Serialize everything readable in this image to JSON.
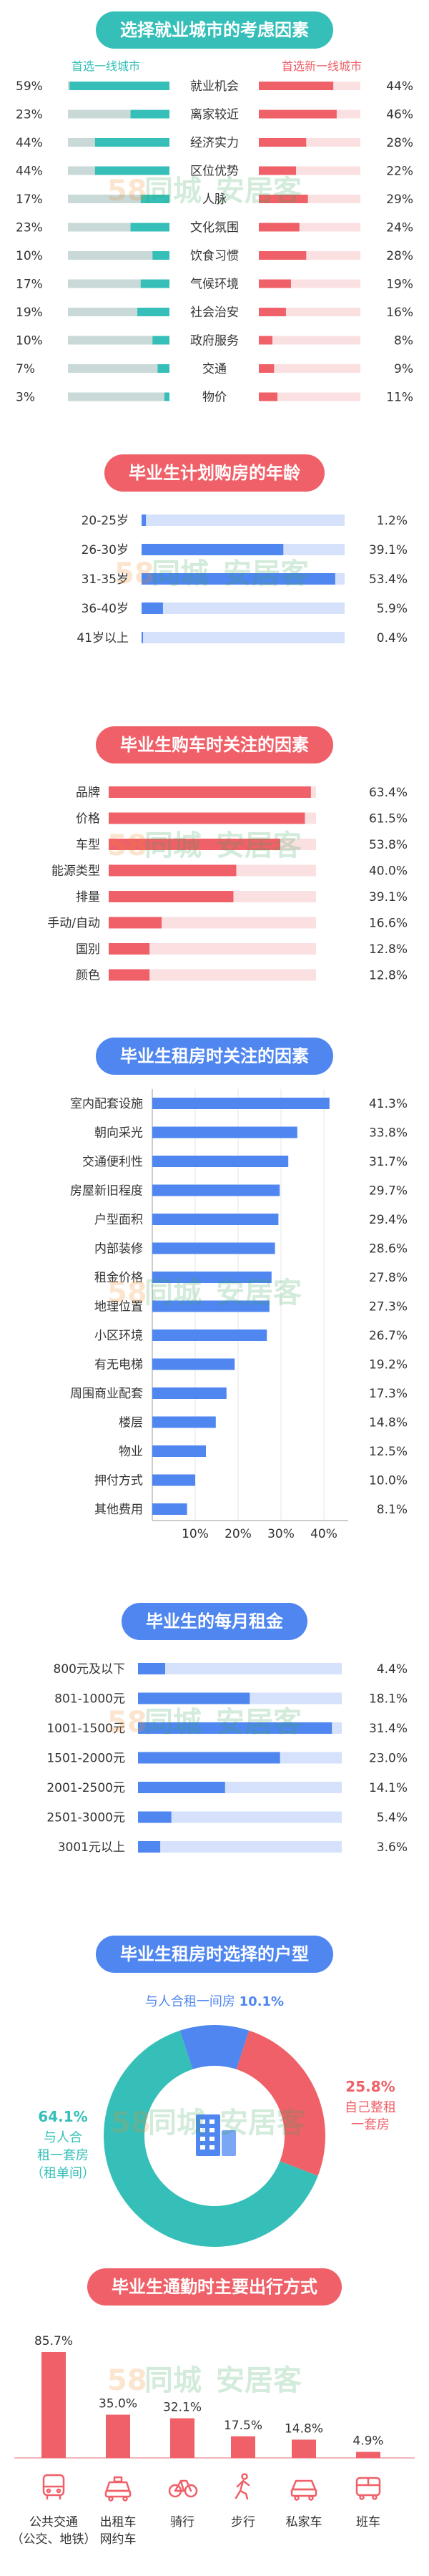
{
  "colors": {
    "teal": "#35bfb8",
    "red": "#ef6068",
    "blue": "#4f86ef",
    "track": "#dfe9fb",
    "track_teal": "#c9d9d8",
    "track_red": "#fbe0e2"
  },
  "watermark": {
    "prefix": "58",
    "text1": "同城",
    "text2": "安居客"
  },
  "s1": {
    "title": "选择就业城市的考虑因素",
    "left_legend": "首选一线城市",
    "right_legend": "首选新一线城市",
    "chart_data": {
      "type": "bar",
      "categories": [
        "就业机会",
        "离家较近",
        "经济实力",
        "区位优势",
        "人脉",
        "文化氛围",
        "饮食习惯",
        "气候环境",
        "社会治安",
        "政府服务",
        "交通",
        "物价"
      ],
      "series": [
        {
          "name": "首选一线城市",
          "values": [
            59,
            23,
            44,
            44,
            17,
            23,
            10,
            17,
            19,
            10,
            7,
            3
          ],
          "labels": [
            "59%",
            "23%",
            "44%",
            "44%",
            "17%",
            "23%",
            "10%",
            "17%",
            "19%",
            "10%",
            "7%",
            "3%"
          ]
        },
        {
          "name": "首选新一线城市",
          "values": [
            44,
            46,
            28,
            22,
            29,
            24,
            28,
            19,
            16,
            8,
            9,
            11
          ],
          "labels": [
            "44%",
            "46%",
            "28%",
            "22%",
            "29%",
            "24%",
            "28%",
            "19%",
            "16%",
            "8%",
            "9%",
            "11%"
          ]
        }
      ]
    }
  },
  "s2": {
    "title": "毕业生计划购房的年龄",
    "chart_data": {
      "type": "bar",
      "categories": [
        "20-25岁",
        "26-30岁",
        "31-35岁",
        "36-40岁",
        "41岁以上"
      ],
      "values": [
        1.2,
        39.1,
        53.4,
        5.9,
        0.4
      ],
      "labels": [
        "1.2%",
        "39.1%",
        "53.4%",
        "5.9%",
        "0.4%"
      ]
    }
  },
  "s3": {
    "title": "毕业生购车时关注的因素",
    "chart_data": {
      "type": "bar",
      "categories": [
        "品牌",
        "价格",
        "车型",
        "能源类型",
        "排量",
        "手动/自动",
        "国别",
        "颜色"
      ],
      "values": [
        63.4,
        61.5,
        53.8,
        40.0,
        39.1,
        16.6,
        12.8,
        12.8
      ],
      "labels": [
        "63.4%",
        "61.5%",
        "53.8%",
        "40.0%",
        "39.1%",
        "16.6%",
        "12.8%",
        "12.8%"
      ]
    }
  },
  "s4": {
    "title": "毕业生租房时关注的因素",
    "chart_data": {
      "type": "bar",
      "categories": [
        "室内配套设施",
        "朝向采光",
        "交通便利性",
        "房屋新旧程度",
        "户型面积",
        "内部装修",
        "租金价格",
        "地理位置",
        "小区环境",
        "有无电梯",
        "周围商业配套",
        "楼层",
        "物业",
        "押付方式",
        "其他费用"
      ],
      "values": [
        41.3,
        33.8,
        31.7,
        29.7,
        29.4,
        28.6,
        27.8,
        27.3,
        26.7,
        19.2,
        17.3,
        14.8,
        12.5,
        10.0,
        8.1
      ],
      "labels": [
        "41.3%",
        "33.8%",
        "31.7%",
        "29.7%",
        "29.4%",
        "28.6%",
        "27.8%",
        "27.3%",
        "26.7%",
        "19.2%",
        "17.3%",
        "14.8%",
        "12.5%",
        "10.0%",
        "8.1%"
      ],
      "xticks": [
        10,
        20,
        30,
        40
      ],
      "xtick_labels": [
        "10%",
        "20%",
        "30%",
        "40%"
      ],
      "xlim": [
        0,
        44
      ],
      "grid": true
    }
  },
  "s5": {
    "title": "毕业生的每月租金",
    "chart_data": {
      "type": "bar",
      "categories": [
        "800元及以下",
        "801-1000元",
        "1001-1500元",
        "1501-2000元",
        "2001-2500元",
        "2501-3000元",
        "3001元以上"
      ],
      "values": [
        4.4,
        18.1,
        31.4,
        23.0,
        14.1,
        5.4,
        3.6
      ],
      "labels": [
        "4.4%",
        "18.1%",
        "31.4%",
        "23.0%",
        "14.1%",
        "5.4%",
        "3.6%"
      ]
    }
  },
  "s6": {
    "title": "毕业生租房时选择的户型",
    "chart_data": {
      "type": "pie",
      "categories": [
        "与人合租一间房",
        "自己整租一套房",
        "与人合租一套房（租单间）"
      ],
      "values": [
        10.1,
        25.8,
        64.1
      ],
      "labels": [
        "10.1%",
        "25.8%",
        "64.1%"
      ],
      "colors": [
        "#4f86ef",
        "#ef6068",
        "#35bfb8"
      ]
    },
    "label_a_text": "与人合租一间房",
    "label_b_lines": [
      "自己整租",
      "一套房"
    ],
    "label_c_lines": [
      "与人合",
      "租一套房",
      "（租单间）"
    ]
  },
  "s7": {
    "title": "毕业生通勤时主要出行方式",
    "chart_data": {
      "type": "bar",
      "categories": [
        "公共交通（公交、地铁）",
        "出租车网约车",
        "骑行",
        "步行",
        "私家车",
        "班车"
      ],
      "values": [
        85.7,
        35.0,
        32.1,
        17.5,
        14.8,
        4.9
      ],
      "labels": [
        "85.7%",
        "35.0%",
        "32.1%",
        "17.5%",
        "14.8%",
        "4.9%"
      ]
    },
    "cat_lines": [
      [
        "公共交通",
        "（公交、地铁）"
      ],
      [
        "出租车",
        "网约车"
      ],
      [
        "骑行"
      ],
      [
        "步行"
      ],
      [
        "私家车"
      ],
      [
        "班车"
      ]
    ],
    "icons": [
      "bus-icon",
      "taxi-icon",
      "bicycle-icon",
      "walking-icon",
      "car-icon",
      "shuttle-bus-icon"
    ]
  }
}
